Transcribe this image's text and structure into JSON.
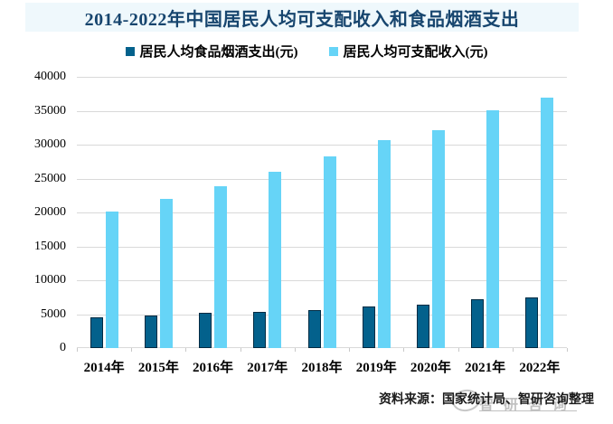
{
  "title": "2014-2022年中国居民人均可支配收入和食品烟酒支出",
  "colors": {
    "title_text": "#17456e",
    "title_band_bg": "#eff8fc",
    "food_bar": "#03618c",
    "food_bar_border": "#002b43",
    "income_bar": "#66d4f7",
    "gridline": "#d9d9d9",
    "watermark": "#8f8f8f"
  },
  "legend": {
    "items": [
      {
        "label": "居民人均食品烟酒支出(元)",
        "color": "#03618c"
      },
      {
        "label": "居民人均可支配收入(元)",
        "color": "#66d4f7"
      }
    ]
  },
  "source": {
    "text": "资料来源：国家统计局、智研咨询整理"
  },
  "watermark": {
    "icon": "oval-logo",
    "text": "智研咨询"
  },
  "chart_data": {
    "type": "bar",
    "title": "2014-2022年中国居民人均可支配收入和食品烟酒支出",
    "categories": [
      "2014年",
      "2015年",
      "2016年",
      "2017年",
      "2018年",
      "2019年",
      "2020年",
      "2021年",
      "2022年"
    ],
    "series": [
      {
        "name": "居民人均食品烟酒支出(元)",
        "color": "#03618c",
        "values": [
          4494,
          4814,
          5151,
          5374,
          5631,
          6084,
          6397,
          7178,
          7481
        ]
      },
      {
        "name": "居民人均可支配收入(元)",
        "color": "#66d4f7",
        "values": [
          20167,
          21966,
          23821,
          25974,
          28228,
          30733,
          32189,
          35128,
          36883
        ]
      }
    ],
    "xlabel": "",
    "ylabel": "",
    "ylim": [
      0,
      40000
    ],
    "ytick_step": 5000,
    "ytick_labels": [
      "0",
      "5000",
      "10000",
      "15000",
      "20000",
      "25000",
      "30000",
      "35000",
      "40000"
    ],
    "grid": true,
    "legend_position": "top"
  }
}
